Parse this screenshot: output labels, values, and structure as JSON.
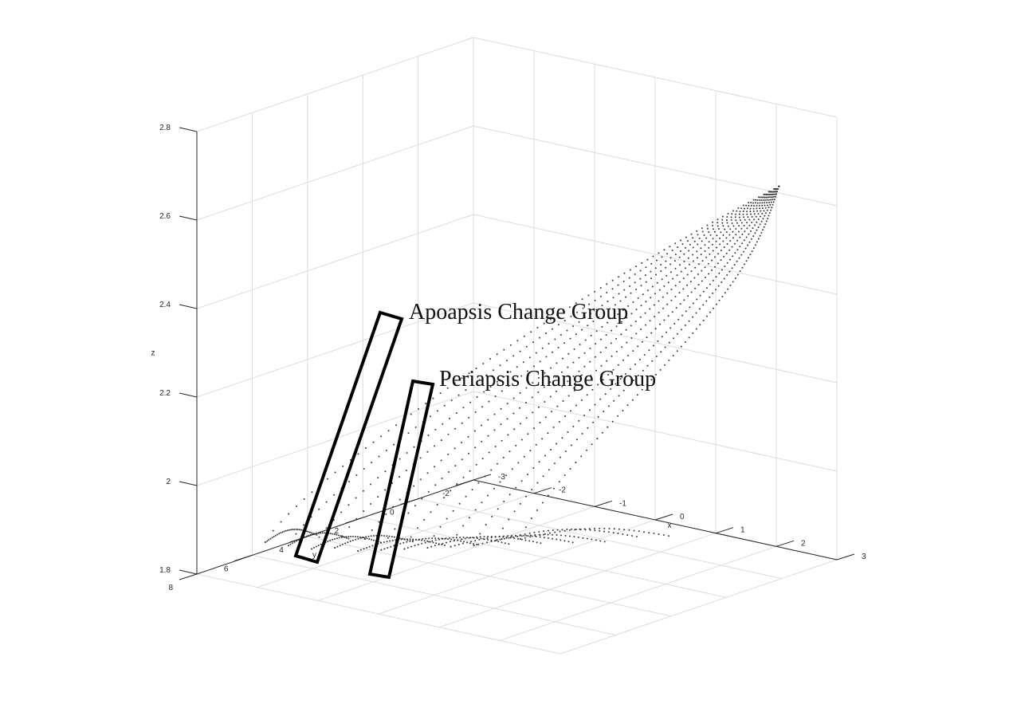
{
  "chart_data": {
    "type": "scatter",
    "title": "",
    "xlabel": "x",
    "ylabel": "y",
    "zlabel": "z",
    "xlim": [
      -3,
      3
    ],
    "ylim": [
      -2,
      8
    ],
    "zlim": [
      1.8,
      2.8
    ],
    "xticks": [
      "-3",
      "-2",
      "-1",
      "0",
      "1",
      "2",
      "3"
    ],
    "yticks": [
      "-2",
      "0",
      "2",
      "4",
      "6",
      "8"
    ],
    "zticks": [
      "1.8",
      "2",
      "2.2",
      "2.4",
      "2.6",
      "2.8"
    ],
    "grid": true,
    "marker": "dot",
    "marker_color": "#3a3a3a",
    "trajectory_family": {
      "description_of_shape": "family of orbital trajectories converging at a common point",
      "converge_point": {
        "x": 2.5,
        "y": -1.0,
        "z": 2.65
      },
      "lower_ends": [
        {
          "x": -2.6,
          "y": 6.4,
          "z": 1.85
        },
        {
          "x": -2.4,
          "y": 6.0,
          "z": 1.84
        },
        {
          "x": -2.2,
          "y": 5.6,
          "z": 1.83
        },
        {
          "x": -2.0,
          "y": 5.2,
          "z": 1.83
        },
        {
          "x": -1.8,
          "y": 4.8,
          "z": 1.82
        },
        {
          "x": -1.6,
          "y": 4.4,
          "z": 1.82
        },
        {
          "x": -1.4,
          "y": 4.0,
          "z": 1.82
        },
        {
          "x": -1.2,
          "y": 3.6,
          "z": 1.82
        },
        {
          "x": -1.0,
          "y": 3.2,
          "z": 1.82
        },
        {
          "x": -0.8,
          "y": 2.8,
          "z": 1.82
        },
        {
          "x": -0.6,
          "y": 2.4,
          "z": 1.83
        },
        {
          "x": -0.4,
          "y": 2.0,
          "z": 1.83
        }
      ]
    },
    "annotations": [
      {
        "text": "Apoapsis Change Group",
        "box_color": "#000000"
      },
      {
        "text": "Periapsis Change Group",
        "box_color": "#000000"
      }
    ]
  }
}
